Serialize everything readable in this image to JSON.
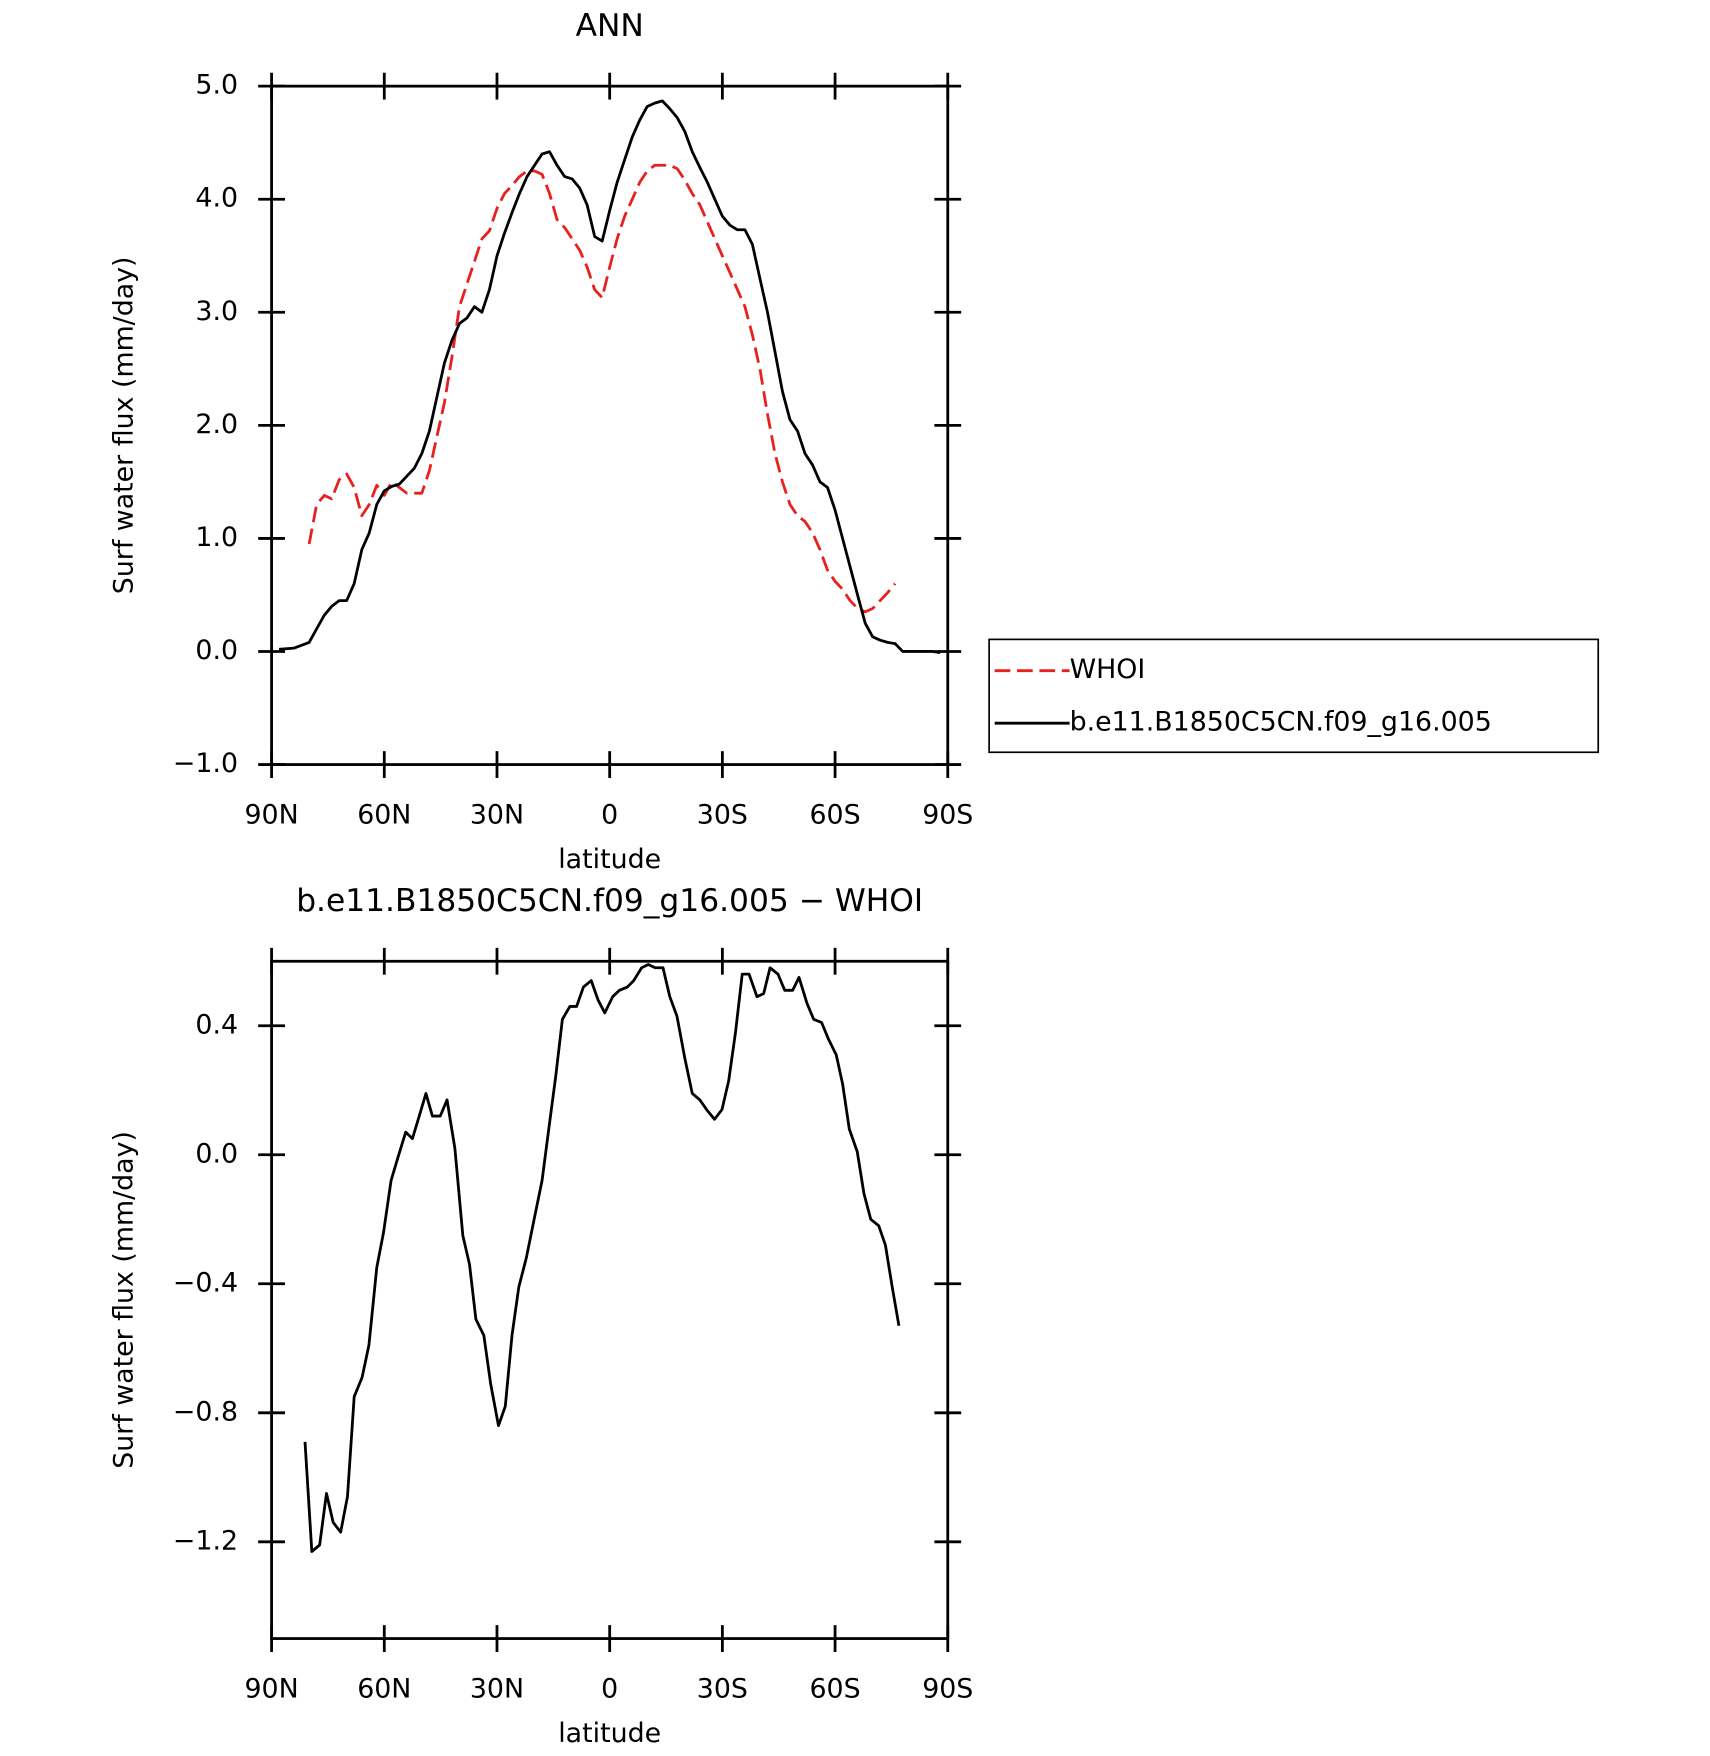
{
  "chart_data": [
    {
      "type": "line",
      "title": "ANN",
      "xlabel": "latitude",
      "ylabel": "Surf water flux (mm/day)",
      "xlim": [
        90,
        -90
      ],
      "xticks": [
        {
          "value": 90,
          "label": "90N"
        },
        {
          "value": 60,
          "label": "60N"
        },
        {
          "value": 30,
          "label": "30N"
        },
        0,
        {
          "value": -30,
          "label": "30S"
        },
        {
          "value": -60,
          "label": "60S"
        },
        {
          "value": -90,
          "label": "90S"
        }
      ],
      "ylim": [
        -1.0,
        5.0
      ],
      "yticks": [
        {
          "value": -1,
          "label": "−1.0"
        },
        {
          "value": 0,
          "label": "0.0"
        },
        {
          "value": 1,
          "label": "1.0"
        },
        {
          "value": 2,
          "label": "2.0"
        },
        {
          "value": 3,
          "label": "3.0"
        },
        {
          "value": 4,
          "label": "4.0"
        },
        {
          "value": 5,
          "label": "5.0"
        }
      ],
      "legend": "right",
      "series": [
        {
          "name": "WHOI",
          "color": "#e8201e",
          "linestyle": "dashed",
          "x": [
            80,
            78,
            76,
            74,
            72,
            70,
            68,
            66,
            64,
            62,
            60,
            58,
            56,
            54,
            52,
            50,
            48,
            46,
            44,
            42,
            40,
            38,
            36,
            34,
            32,
            30,
            28,
            26,
            24,
            22,
            20,
            18,
            16,
            14,
            12,
            10,
            8,
            6,
            4,
            2,
            0,
            -2,
            -4,
            -6,
            -8,
            -10,
            -12,
            -14,
            -16,
            -18,
            -20,
            -22,
            -24,
            -26,
            -28,
            -30,
            -32,
            -34,
            -36,
            -38,
            -40,
            -42,
            -44,
            -46,
            -48,
            -50,
            -52,
            -54,
            -56,
            -58,
            -60,
            -62,
            -64,
            -66,
            -68,
            -70,
            -72,
            -74,
            -76
          ],
          "values": [
            0.95,
            1.3,
            1.38,
            1.35,
            1.52,
            1.57,
            1.45,
            1.2,
            1.3,
            1.47,
            1.38,
            1.5,
            1.45,
            1.4,
            1.4,
            1.4,
            1.6,
            1.9,
            2.2,
            2.6,
            3.05,
            3.25,
            3.45,
            3.65,
            3.72,
            3.92,
            4.05,
            4.12,
            4.2,
            4.25,
            4.25,
            4.22,
            4.05,
            3.82,
            3.75,
            3.65,
            3.55,
            3.4,
            3.2,
            3.13,
            3.4,
            3.65,
            3.85,
            4.0,
            4.15,
            4.25,
            4.3,
            4.3,
            4.3,
            4.27,
            4.17,
            4.05,
            3.95,
            3.8,
            3.65,
            3.5,
            3.35,
            3.2,
            3.05,
            2.8,
            2.5,
            2.1,
            1.75,
            1.5,
            1.3,
            1.2,
            1.15,
            1.05,
            0.9,
            0.72,
            0.62,
            0.55,
            0.45,
            0.38,
            0.35,
            0.38,
            0.45,
            0.52,
            0.6
          ]
        },
        {
          "name": "b.e11.B1850C5CN.f09_g16.005",
          "color": "#000000",
          "linestyle": "solid",
          "x": [
            88,
            84,
            80,
            78,
            76,
            74,
            72,
            70,
            68,
            66,
            64,
            62,
            60,
            58,
            56,
            54,
            52,
            50,
            48,
            46,
            44,
            42,
            40,
            38,
            36,
            34,
            32,
            30,
            28,
            26,
            24,
            22,
            20,
            18,
            16,
            14,
            12,
            10,
            8,
            6,
            4,
            2,
            0,
            -2,
            -4,
            -6,
            -8,
            -10,
            -12,
            -14,
            -16,
            -18,
            -20,
            -22,
            -24,
            -26,
            -28,
            -30,
            -32,
            -34,
            -36,
            -38,
            -40,
            -42,
            -44,
            -46,
            -48,
            -50,
            -52,
            -54,
            -56,
            -58,
            -60,
            -62,
            -64,
            -66,
            -68,
            -70,
            -72,
            -74,
            -76,
            -78,
            -82,
            -86,
            -88
          ],
          "values": [
            0.02,
            0.03,
            0.08,
            0.2,
            0.32,
            0.4,
            0.45,
            0.45,
            0.6,
            0.9,
            1.05,
            1.3,
            1.42,
            1.46,
            1.48,
            1.55,
            1.62,
            1.75,
            1.95,
            2.25,
            2.55,
            2.75,
            2.9,
            2.95,
            3.05,
            3.0,
            3.2,
            3.5,
            3.7,
            3.88,
            4.05,
            4.2,
            4.3,
            4.4,
            4.42,
            4.3,
            4.2,
            4.18,
            4.1,
            3.95,
            3.67,
            3.63,
            3.9,
            4.15,
            4.35,
            4.55,
            4.7,
            4.82,
            4.85,
            4.87,
            4.8,
            4.72,
            4.6,
            4.42,
            4.28,
            4.15,
            4.0,
            3.85,
            3.77,
            3.73,
            3.73,
            3.6,
            3.3,
            3.0,
            2.65,
            2.3,
            2.05,
            1.95,
            1.75,
            1.65,
            1.5,
            1.45,
            1.25,
            1.0,
            0.75,
            0.5,
            0.25,
            0.13,
            0.1,
            0.08,
            0.07,
            0.0,
            0.0,
            0.0,
            -0.01
          ]
        }
      ]
    },
    {
      "type": "line",
      "title": "b.e11.B1850C5CN.f09_g16.005 − WHOI",
      "xlabel": "latitude",
      "ylabel": "Surf water flux (mm/day)",
      "xlim": [
        90,
        -90
      ],
      "xticks": [
        {
          "value": 90,
          "label": "90N"
        },
        {
          "value": 60,
          "label": "60N"
        },
        {
          "value": 30,
          "label": "30N"
        },
        0,
        {
          "value": -30,
          "label": "30S"
        },
        {
          "value": -60,
          "label": "60S"
        },
        {
          "value": -90,
          "label": "90S"
        }
      ],
      "ylim": [
        -1.5,
        0.6
      ],
      "yticks": [
        {
          "value": -1.2,
          "label": "−1.2"
        },
        {
          "value": -0.8,
          "label": "−0.8"
        },
        {
          "value": -0.4,
          "label": "−0.4"
        },
        {
          "value": 0,
          "label": "0.0"
        },
        0.4
      ],
      "series": [
        {
          "color": "#000000",
          "linestyle": "solid",
          "x": [
            81.1,
            79.3,
            77.2,
            75.4,
            73.6,
            71.6,
            69.8,
            68,
            65.9,
            64.1,
            62,
            60.2,
            58.2,
            56.4,
            54.3,
            52.5,
            50.7,
            48.9,
            47.2,
            45.1,
            43.3,
            41.2,
            39.1,
            37.3,
            35.6,
            33.5,
            31.7,
            29.6,
            27.8,
            26,
            24.2,
            22.2,
            20.1,
            18,
            16.2,
            14.4,
            12.6,
            10.6,
            8.8,
            7,
            4.9,
            3.1,
            1.3,
            -0.8,
            -2.6,
            -4.7,
            -6.4,
            -8.5,
            -10.3,
            -12.1,
            -14.2,
            -16,
            -17.9,
            -20,
            -22,
            -24,
            -25.8,
            -27.9,
            -29.9,
            -31.7,
            -33.5,
            -35.3,
            -37.1,
            -39.2,
            -41,
            -42.7,
            -44.8,
            -46.6,
            -48.7,
            -50.4,
            -52.5,
            -54.3,
            -56.4,
            -58.2,
            -60.3,
            -62,
            -63.8,
            -65.9,
            -67.7,
            -69.5,
            -71.6,
            -73.4,
            -75.2,
            -77
          ],
          "values": [
            -0.89,
            -1.23,
            -1.21,
            -1.05,
            -1.14,
            -1.17,
            -1.06,
            -0.75,
            -0.69,
            -0.59,
            -0.35,
            -0.24,
            -0.08,
            -0.01,
            0.07,
            0.05,
            0.12,
            0.19,
            0.12,
            0.12,
            0.17,
            0.02,
            -0.25,
            -0.34,
            -0.51,
            -0.56,
            -0.71,
            -0.84,
            -0.78,
            -0.56,
            -0.41,
            -0.32,
            -0.2,
            -0.08,
            0.08,
            0.24,
            0.42,
            0.46,
            0.46,
            0.52,
            0.54,
            0.48,
            0.44,
            0.49,
            0.51,
            0.52,
            0.54,
            0.58,
            0.59,
            0.58,
            0.58,
            0.49,
            0.43,
            0.3,
            0.19,
            0.17,
            0.14,
            0.11,
            0.14,
            0.23,
            0.38,
            0.56,
            0.56,
            0.49,
            0.5,
            0.58,
            0.56,
            0.51,
            0.51,
            0.55,
            0.47,
            0.42,
            0.41,
            0.36,
            0.31,
            0.22,
            0.08,
            0.01,
            -0.12,
            -0.2,
            -0.22,
            -0.28,
            -0.41,
            -0.53
          ]
        }
      ]
    }
  ]
}
